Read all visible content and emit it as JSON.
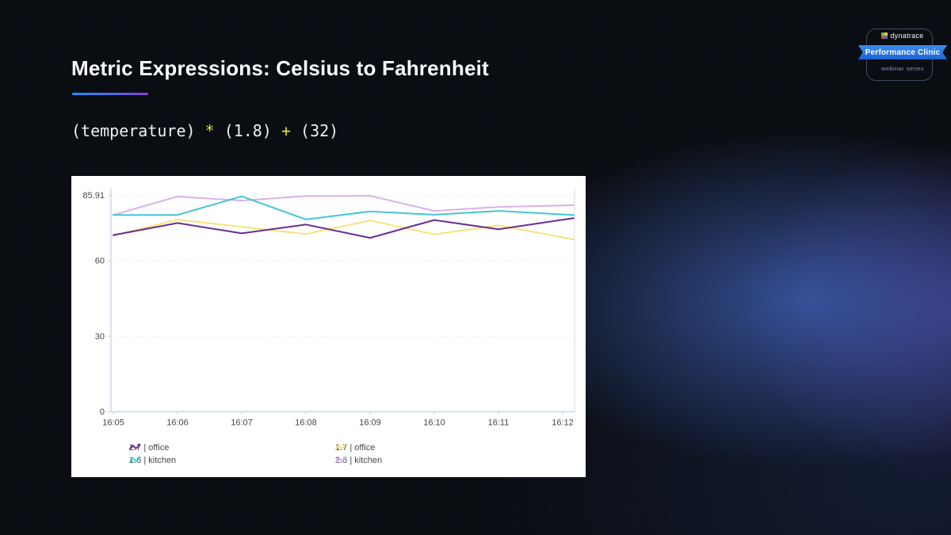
{
  "slide": {
    "title": "Metric Expressions: Celsius to Fahrenheit",
    "expression": {
      "segments": [
        {
          "text": "(temperature)",
          "role": "code"
        },
        {
          "text": "*",
          "role": "operator"
        },
        {
          "text": "(1.8)",
          "role": "code"
        },
        {
          "text": "+",
          "role": "operator"
        },
        {
          "text": "(32)",
          "role": "code"
        }
      ],
      "operator_color": "#d9e02e",
      "text_color": "#edf0f3"
    },
    "accent_gradient": [
      "#1e90ff",
      "#7f42d8"
    ]
  },
  "badge": {
    "logo_text": "dynatrace",
    "ribbon_label": "Performance Clinic",
    "subtitle": "webinar series",
    "ribbon_color": "#2a7de1"
  },
  "chart_data": {
    "type": "line",
    "title": "",
    "xlabel": "",
    "ylabel": "",
    "x": [
      "16:05",
      "16:06",
      "16:07",
      "16:08",
      "16:09",
      "16:10",
      "16:11",
      "16:12"
    ],
    "y_ticks": [
      0,
      30,
      60,
      85.91
    ],
    "y_tick_labels": [
      "0",
      "30",
      "60",
      "85.91"
    ],
    "ylim": [
      0,
      88.7
    ],
    "grid": true,
    "legend_position": "bottom-two-columns",
    "series": [
      {
        "name": "2.7 | office",
        "color": "#6a2d91",
        "values": [
          70.2,
          75.0,
          70.9,
          74.4,
          69.1,
          76.2,
          72.5,
          76.3
        ]
      },
      {
        "name": "1.6 | kitchen",
        "color": "#43c6d6",
        "values": [
          78.2,
          78.2,
          85.6,
          76.4,
          79.6,
          78.3,
          79.8,
          78.4
        ]
      },
      {
        "name": "1.7 | office",
        "color": "#f7e27a",
        "values": [
          70.0,
          76.3,
          73.5,
          70.6,
          76.0,
          70.5,
          74.1,
          69.3
        ]
      },
      {
        "name": "2.6 | kitchen",
        "color": "#d8b2e9",
        "values": [
          78.2,
          85.5,
          83.9,
          85.7,
          85.8,
          79.8,
          81.4,
          82.0
        ]
      }
    ],
    "legend_columns": [
      [
        0,
        1
      ],
      [
        2,
        3
      ]
    ],
    "draw_order": [
      3,
      2,
      1,
      0
    ],
    "axis_color": "#bcd2e4",
    "grid_color": "#d9dde0",
    "tick_label_color": "#45484b"
  }
}
